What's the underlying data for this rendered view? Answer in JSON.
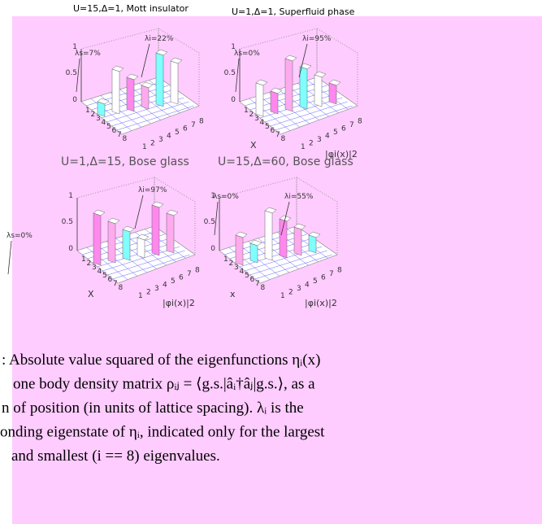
{
  "panels": [
    {
      "title": "U=15,Δ=1, Mott insulator",
      "annotations": [
        "λs=7%",
        "λi=22%"
      ],
      "zticks": [
        "1",
        "0.5",
        "0"
      ],
      "xticks": [
        "1",
        "2",
        "3",
        "4",
        "5",
        "6",
        "7",
        "8"
      ],
      "yticks": [
        "1",
        "2",
        "3",
        "4",
        "5",
        "6",
        "7",
        "8"
      ]
    },
    {
      "title": "U=1,Δ=1, Superfluid phase",
      "annotations": [
        "λs=0%",
        "λi=95%"
      ],
      "zticks": [
        "1",
        "0.5",
        "0"
      ],
      "xticks": [
        "1",
        "2",
        "3",
        "4",
        "5",
        "6",
        "7",
        "8"
      ],
      "yticks": [
        "1",
        "2",
        "3",
        "4",
        "5",
        "6",
        "7",
        "8"
      ],
      "xlabel": "X",
      "ylabel": "|φi(x)|2"
    },
    {
      "title": "U=1,Δ=15, Bose glass",
      "annotations": [
        "λs=0%",
        "λi=97%"
      ],
      "zticks": [
        "1",
        "0.5",
        "0"
      ],
      "xticks": [
        "1",
        "2",
        "3",
        "4",
        "5",
        "6",
        "7",
        "8"
      ],
      "yticks": [
        "1",
        "2",
        "3",
        "4",
        "5",
        "6",
        "7",
        "8"
      ],
      "xlabel": "X",
      "ylabel": "|φi(x)|2"
    },
    {
      "title": "U=15,Δ=60, Bose glass",
      "annotations": [
        "λs=0%",
        "λi=55%"
      ],
      "zticks": [
        "1",
        "0.5",
        "0"
      ],
      "xticks": [
        "1",
        "2",
        "3",
        "4",
        "5",
        "6",
        "7",
        "8"
      ],
      "yticks": [
        "1",
        "2",
        "3",
        "4",
        "5",
        "6",
        "7",
        "8"
      ],
      "xlabel": "x",
      "ylabel": "|φi(x)|2"
    }
  ],
  "caption": [
    ": Absolute value squared of the eigenfunctions ηᵢ(x)",
    "one body density matrix ρᵢⱼ = ⟨g.s.|âᵢ†âⱼ|g.s.⟩, as a",
    "n of position (in units of lattice spacing).  λᵢ is the",
    "onding eigenstate of ηᵢ, indicated only for the largest",
    "and smallest (i == 8) eigenvalues."
  ]
}
